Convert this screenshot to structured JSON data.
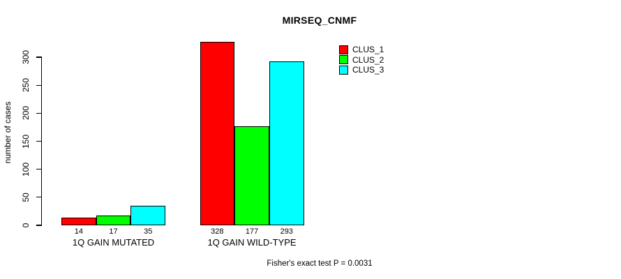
{
  "figure": {
    "background": "#ffffff",
    "text_color": "#000000",
    "axis_color": "#000000",
    "bar_border_color": "#000000"
  },
  "chart_data": {
    "type": "bar",
    "title": "MIRSEQ_CNMF",
    "xlabel": "",
    "ylabel": "number of cases",
    "categories": [
      "1Q GAIN MUTATED",
      "1Q GAIN WILD-TYPE"
    ],
    "series": [
      {
        "name": "CLUS_1",
        "color": "#ff0000",
        "values": [
          14,
          328
        ]
      },
      {
        "name": "CLUS_2",
        "color": "#00ff00",
        "values": [
          17,
          177
        ]
      },
      {
        "name": "CLUS_3",
        "color": "#00ffff",
        "values": [
          35,
          293
        ]
      }
    ],
    "bar_value_labels": [
      [
        "14",
        "17",
        "35"
      ],
      [
        "328",
        "177",
        "293"
      ]
    ],
    "yticks": [
      0,
      50,
      100,
      150,
      200,
      250,
      300
    ],
    "ylim": [
      0,
      300
    ],
    "grid": false,
    "legend": {
      "position": "right",
      "entries": [
        "CLUS_1",
        "CLUS_2",
        "CLUS_3"
      ]
    },
    "annotation": "Fisher's exact test P = 0.0031"
  }
}
